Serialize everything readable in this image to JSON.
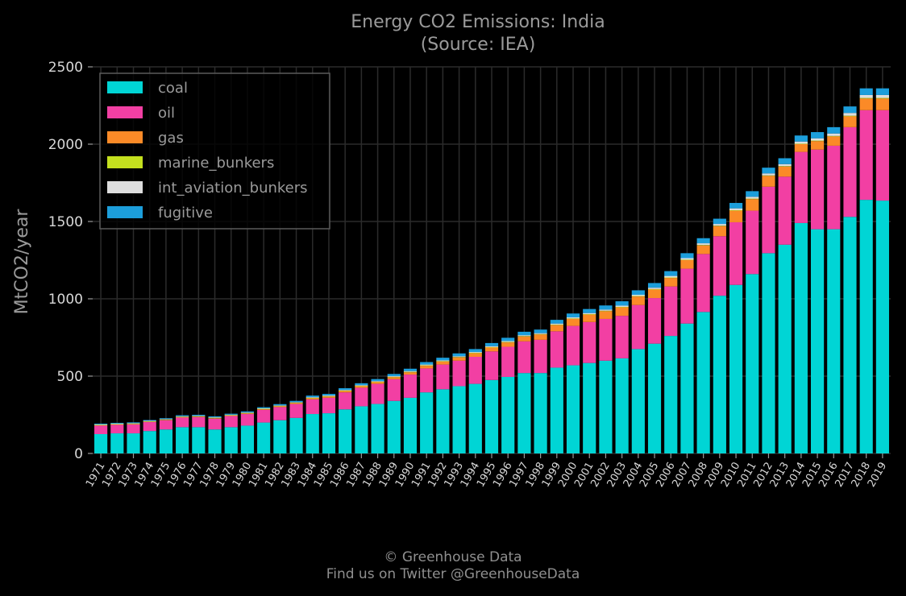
{
  "chart_data": {
    "type": "bar",
    "stacked": true,
    "title": "Energy CO2 Emissions: India",
    "subtitle": "(Source: IEA)",
    "ylabel": "MtCO2/year",
    "xlabel": "",
    "ylim": [
      0,
      2500
    ],
    "yticks": [
      0,
      500,
      1000,
      1500,
      2000,
      2500
    ],
    "grid": true,
    "legend_position": "top-left",
    "categories": [
      "1971",
      "1972",
      "1973",
      "1974",
      "1975",
      "1976",
      "1977",
      "1978",
      "1979",
      "1980",
      "1981",
      "1982",
      "1983",
      "1984",
      "1985",
      "1986",
      "1987",
      "1988",
      "1989",
      "1990",
      "1991",
      "1992",
      "1993",
      "1994",
      "1995",
      "1996",
      "1997",
      "1998",
      "1999",
      "2000",
      "2001",
      "2002",
      "2003",
      "2004",
      "2005",
      "2006",
      "2007",
      "2008",
      "2009",
      "2010",
      "2011",
      "2012",
      "2013",
      "2014",
      "2015",
      "2016",
      "2017",
      "2018",
      "2019"
    ],
    "series": [
      {
        "name": "coal",
        "color": "#00d5d5",
        "values": [
          125,
          130,
          130,
          145,
          155,
          170,
          170,
          155,
          170,
          180,
          200,
          215,
          230,
          255,
          260,
          285,
          305,
          320,
          340,
          360,
          395,
          415,
          435,
          450,
          475,
          495,
          520,
          520,
          555,
          570,
          585,
          600,
          615,
          675,
          710,
          760,
          840,
          915,
          1020,
          1090,
          1160,
          1295,
          1350,
          1490,
          1450,
          1450,
          1530,
          1640,
          1635
        ]
      },
      {
        "name": "oil",
        "color": "#f23fa3",
        "values": [
          55,
          55,
          58,
          58,
          60,
          62,
          65,
          70,
          72,
          75,
          82,
          85,
          90,
          95,
          100,
          110,
          120,
          130,
          140,
          150,
          155,
          160,
          165,
          175,
          185,
          195,
          205,
          215,
          235,
          255,
          265,
          270,
          275,
          285,
          295,
          320,
          355,
          375,
          385,
          405,
          410,
          430,
          440,
          460,
          515,
          540,
          580,
          580,
          585
        ]
      },
      {
        "name": "gas",
        "color": "#fb8a27",
        "values": [
          2,
          2,
          2,
          2,
          2,
          3,
          3,
          3,
          3,
          4,
          4,
          5,
          6,
          7,
          8,
          9,
          10,
          11,
          13,
          15,
          17,
          19,
          21,
          23,
          25,
          28,
          31,
          34,
          40,
          45,
          48,
          50,
          55,
          55,
          55,
          55,
          55,
          55,
          65,
          75,
          75,
          70,
          65,
          50,
          55,
          60,
          70,
          75,
          75
        ]
      },
      {
        "name": "marine_bunkers",
        "color": "#c4e01e",
        "values": [
          3,
          3,
          3,
          3,
          3,
          3,
          3,
          3,
          3,
          3,
          3,
          3,
          3,
          3,
          3,
          3,
          3,
          3,
          3,
          3,
          3,
          3,
          3,
          3,
          3,
          3,
          3,
          3,
          3,
          3,
          3,
          3,
          3,
          3,
          3,
          3,
          3,
          3,
          3,
          3,
          3,
          3,
          3,
          3,
          3,
          3,
          4,
          4,
          4
        ]
      },
      {
        "name": "int_aviation_bunkers",
        "color": "#dedede",
        "values": [
          3,
          3,
          3,
          3,
          3,
          3,
          3,
          3,
          3,
          3,
          3,
          3,
          3,
          4,
          4,
          4,
          4,
          4,
          4,
          5,
          5,
          5,
          5,
          5,
          6,
          6,
          6,
          6,
          7,
          7,
          7,
          7,
          8,
          8,
          9,
          10,
          10,
          11,
          11,
          12,
          12,
          13,
          13,
          14,
          15,
          16,
          18,
          19,
          19
        ]
      },
      {
        "name": "fugitive",
        "color": "#1c9edb",
        "values": [
          5,
          5,
          5,
          5,
          5,
          6,
          6,
          6,
          6,
          7,
          7,
          8,
          8,
          10,
          10,
          11,
          12,
          13,
          14,
          15,
          16,
          17,
          18,
          19,
          20,
          21,
          22,
          23,
          24,
          25,
          26,
          27,
          28,
          29,
          30,
          31,
          32,
          33,
          34,
          35,
          36,
          37,
          38,
          39,
          40,
          41,
          42,
          43,
          43
        ]
      }
    ]
  },
  "footer": {
    "line1": "© Greenhouse Data",
    "line2": "Find us on Twitter @GreenhouseData"
  }
}
